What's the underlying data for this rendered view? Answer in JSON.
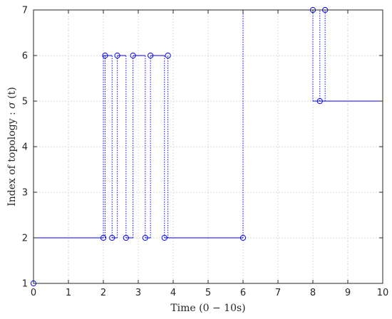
{
  "chart_data": {
    "type": "line",
    "subtype": "step-with-switch-markers",
    "title": "",
    "xlabel": "Time (0 − 10s)",
    "ylabel_prefix": "Index of topology : ",
    "ylabel_symbol": "σ",
    "ylabel_arg": " (t)",
    "xlim": [
      0,
      10
    ],
    "ylim": [
      1,
      7
    ],
    "xticks": [
      0,
      1,
      2,
      3,
      4,
      5,
      6,
      7,
      8,
      9,
      10
    ],
    "yticks": [
      1,
      2,
      3,
      4,
      5,
      6,
      7
    ],
    "xtick_labels": [
      "0",
      "1",
      "2",
      "3",
      "4",
      "5",
      "6",
      "7",
      "8",
      "9",
      "10"
    ],
    "ytick_labels": [
      "1",
      "2",
      "3",
      "4",
      "5",
      "6",
      "7"
    ],
    "grid": true,
    "colors": {
      "series": "#0000ff",
      "grid": "#d9d9d9",
      "axis": "#262626"
    },
    "series": [
      {
        "segments": [
          {
            "x0": 0.0,
            "x1": 0.0,
            "y": 1
          },
          {
            "x0": 0.0,
            "x1": 2.0,
            "y": 2
          },
          {
            "x0": 2.0,
            "x1": 2.25,
            "y": 6
          },
          {
            "x0": 2.25,
            "x1": 2.4,
            "y": 2
          },
          {
            "x0": 2.4,
            "x1": 2.65,
            "y": 6
          },
          {
            "x0": 2.65,
            "x1": 2.85,
            "y": 2
          },
          {
            "x0": 2.85,
            "x1": 3.2,
            "y": 6
          },
          {
            "x0": 3.2,
            "x1": 3.35,
            "y": 2
          },
          {
            "x0": 3.35,
            "x1": 3.75,
            "y": 6
          },
          {
            "x0": 3.75,
            "x1": 3.85,
            "y": 2
          },
          {
            "x0": 3.85,
            "x1": 6.0,
            "y": 2
          },
          {
            "x0": 6.0,
            "x1": 8.0,
            "y": 7
          },
          {
            "x0": 8.0,
            "x1": 8.2,
            "y": 5
          },
          {
            "x0": 8.2,
            "x1": 8.35,
            "y": 5
          },
          {
            "x0": 8.35,
            "x1": 10.0,
            "y": 5
          }
        ],
        "switch_lines": [
          {
            "x": 0.0,
            "y0": 1,
            "y1": 2
          },
          {
            "x": 2.0,
            "y0": 2,
            "y1": 6
          },
          {
            "x": 2.05,
            "y0": 2,
            "y1": 6
          },
          {
            "x": 2.25,
            "y0": 2,
            "y1": 6
          },
          {
            "x": 2.4,
            "y0": 2,
            "y1": 6
          },
          {
            "x": 2.65,
            "y0": 2,
            "y1": 6
          },
          {
            "x": 2.85,
            "y0": 2,
            "y1": 6
          },
          {
            "x": 3.2,
            "y0": 2,
            "y1": 6
          },
          {
            "x": 3.35,
            "y0": 2,
            "y1": 6
          },
          {
            "x": 3.75,
            "y0": 2,
            "y1": 6
          },
          {
            "x": 3.85,
            "y0": 2,
            "y1": 6
          },
          {
            "x": 6.0,
            "y0": 2,
            "y1": 7
          },
          {
            "x": 8.0,
            "y0": 5,
            "y1": 7
          },
          {
            "x": 8.2,
            "y0": 5,
            "y1": 7
          },
          {
            "x": 8.35,
            "y0": 5,
            "y1": 7
          }
        ],
        "markers": [
          {
            "x": 0.0,
            "y": 1
          },
          {
            "x": 2.0,
            "y": 2
          },
          {
            "x": 2.05,
            "y": 6
          },
          {
            "x": 2.25,
            "y": 2
          },
          {
            "x": 2.4,
            "y": 6
          },
          {
            "x": 2.65,
            "y": 2
          },
          {
            "x": 2.85,
            "y": 6
          },
          {
            "x": 3.2,
            "y": 2
          },
          {
            "x": 3.35,
            "y": 6
          },
          {
            "x": 3.75,
            "y": 2
          },
          {
            "x": 3.85,
            "y": 6
          },
          {
            "x": 6.0,
            "y": 2
          },
          {
            "x": 8.0,
            "y": 7
          },
          {
            "x": 8.2,
            "y": 5
          },
          {
            "x": 8.35,
            "y": 7
          }
        ]
      }
    ]
  }
}
